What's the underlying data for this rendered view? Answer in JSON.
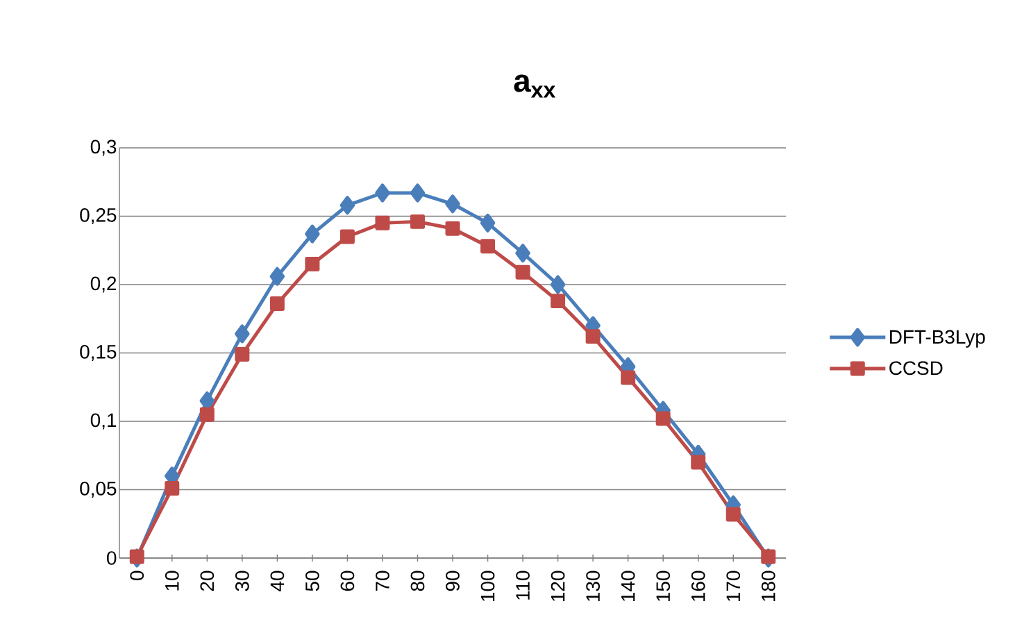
{
  "chart_data": {
    "type": "line",
    "title": "a$_{xx}$",
    "categories": [
      "0",
      "10",
      "20",
      "30",
      "40",
      "50",
      "60",
      "70",
      "80",
      "90",
      "100",
      "110",
      "120",
      "130",
      "140",
      "150",
      "160",
      "170",
      "180"
    ],
    "series": [
      {
        "name": "DFT-B3Lyp",
        "color": "#4a7ebb",
        "marker": "diamond",
        "values": [
          0,
          0.06,
          0.115,
          0.164,
          0.206,
          0.237,
          0.258,
          0.267,
          0.267,
          0.259,
          0.245,
          0.223,
          0.2,
          0.17,
          0.14,
          0.108,
          0.076,
          0.039,
          0
        ]
      },
      {
        "name": "CCSD",
        "color": "#be4b48",
        "marker": "square",
        "values": [
          0.001,
          0.051,
          0.105,
          0.149,
          0.186,
          0.215,
          0.235,
          0.245,
          0.246,
          0.241,
          0.228,
          0.209,
          0.188,
          0.162,
          0.132,
          0.102,
          0.07,
          0.032,
          0.001
        ]
      }
    ],
    "ylim": [
      0,
      0.3
    ],
    "yticks": [
      0,
      {
        "value": 0.05,
        "label": "0,05"
      },
      {
        "value": 0.1,
        "label": "0,1"
      },
      {
        "value": 0.15,
        "label": "0,15"
      },
      {
        "value": 0.2,
        "label": "0,2"
      },
      {
        "value": 0.25,
        "label": "0,25"
      },
      {
        "value": 0.3,
        "label": "0,3"
      }
    ],
    "grid": "y",
    "legend": "right",
    "line_style": "solid"
  }
}
